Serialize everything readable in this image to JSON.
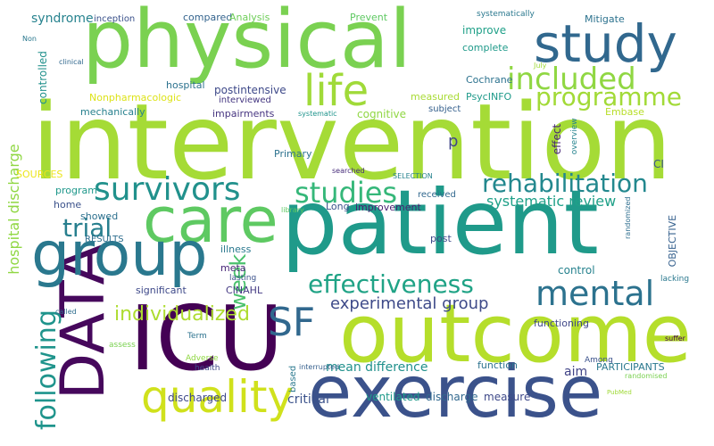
{
  "words": [
    {
      "text": "intervention",
      "color": "#a5db36"
    },
    {
      "text": "patient",
      "color": "#1f9a8a"
    },
    {
      "text": "physical",
      "color": "#7ad151"
    },
    {
      "text": "outcome",
      "color": "#b5de2b"
    },
    {
      "text": "exercise",
      "color": "#3b528b"
    },
    {
      "text": "ICU",
      "color": "#440154"
    },
    {
      "text": "DATA",
      "color": "#46085c"
    },
    {
      "text": "care",
      "color": "#5ec962"
    },
    {
      "text": "group",
      "color": "#2a788e"
    },
    {
      "text": "study",
      "color": "#31688e"
    },
    {
      "text": "life",
      "color": "#a0da39"
    },
    {
      "text": "quality",
      "color": "#d0e11c"
    },
    {
      "text": "SF",
      "color": "#31688e"
    },
    {
      "text": "survivors",
      "color": "#21918c"
    },
    {
      "text": "studies",
      "color": "#35b779"
    },
    {
      "text": "rehabilitation",
      "color": "#23888e"
    },
    {
      "text": "effectiveness",
      "color": "#20a386"
    },
    {
      "text": "mental",
      "color": "#2c728e"
    },
    {
      "text": "included",
      "color": "#90d743"
    },
    {
      "text": "programme",
      "color": "#a2da37"
    },
    {
      "text": "following",
      "color": "#1f948c"
    },
    {
      "text": "trial",
      "color": "#277f8e"
    },
    {
      "text": "week",
      "color": "#4ac16d"
    },
    {
      "text": "individualized",
      "color": "#addc30"
    },
    {
      "text": "experimental group",
      "color": "#3e4a89"
    },
    {
      "text": "systematic review",
      "color": "#1fa088"
    },
    {
      "text": "hospital discharge",
      "color": "#90d743"
    },
    {
      "text": "mean difference",
      "color": "#21918c"
    },
    {
      "text": "syndrome",
      "color": "#26828e"
    },
    {
      "text": "inception",
      "color": "#3b528b"
    },
    {
      "text": "compared",
      "color": "#33638d"
    },
    {
      "text": "Analysis",
      "color": "#6ece58"
    },
    {
      "text": "Prevent",
      "color": "#5ec962"
    },
    {
      "text": "systematically",
      "color": "#2a788e"
    },
    {
      "text": "Mitigate",
      "color": "#2c728e"
    },
    {
      "text": "improve",
      "color": "#1fa088"
    },
    {
      "text": "complete",
      "color": "#1f9a8a"
    },
    {
      "text": "Cochrane",
      "color": "#2c728e"
    },
    {
      "text": "measured",
      "color": "#a8db34"
    },
    {
      "text": "PsycINFO",
      "color": "#1f9a8a"
    },
    {
      "text": "subject",
      "color": "#35608d"
    },
    {
      "text": "Embase",
      "color": "#b8de29"
    },
    {
      "text": "effect",
      "color": "#482677"
    },
    {
      "text": "overview",
      "color": "#25838e"
    },
    {
      "text": "postintensive",
      "color": "#3e4989"
    },
    {
      "text": "interviewed",
      "color": "#453781"
    },
    {
      "text": "impairments",
      "color": "#463480"
    },
    {
      "text": "systematic",
      "color": "#1f948c"
    },
    {
      "text": "cognitive",
      "color": "#90d743"
    },
    {
      "text": "hospital",
      "color": "#2c728e"
    },
    {
      "text": "mechanically",
      "color": "#27808e"
    },
    {
      "text": "Nonpharmacologic",
      "color": "#dde318"
    },
    {
      "text": "controlled",
      "color": "#21918c"
    },
    {
      "text": "Non",
      "color": "#2a788e"
    },
    {
      "text": "clinical",
      "color": "#31688e"
    },
    {
      "text": "July",
      "color": "#a0da39"
    },
    {
      "text": "p",
      "color": "#404688"
    },
    {
      "text": "CI",
      "color": "#3b528b"
    },
    {
      "text": "Primary",
      "color": "#2c728e"
    },
    {
      "text": "searched",
      "color": "#472c7a"
    },
    {
      "text": "SELECTION",
      "color": "#26828e"
    },
    {
      "text": "received",
      "color": "#31688e"
    },
    {
      "text": "SOURCES",
      "color": "#ece51b"
    },
    {
      "text": "program",
      "color": "#1f988b"
    },
    {
      "text": "home",
      "color": "#3b528b"
    },
    {
      "text": "showed",
      "color": "#2d708e"
    },
    {
      "text": "RESULTS",
      "color": "#2e6e8e"
    },
    {
      "text": "library",
      "color": "#5ec962"
    },
    {
      "text": "Long",
      "color": "#3b528b"
    },
    {
      "text": "improvement",
      "color": "#482071"
    },
    {
      "text": "illness",
      "color": "#2a788e"
    },
    {
      "text": "post",
      "color": "#3e4989"
    },
    {
      "text": "meta",
      "color": "#482878"
    },
    {
      "text": "lasting",
      "color": "#3b528b"
    },
    {
      "text": "significant",
      "color": "#3e4989"
    },
    {
      "text": "CINAHL",
      "color": "#443983"
    },
    {
      "text": "OBJECTIVE",
      "color": "#35608d"
    },
    {
      "text": "randomized",
      "color": "#2e6e8e"
    },
    {
      "text": "control",
      "color": "#26828e"
    },
    {
      "text": "functioning",
      "color": "#3f4788"
    },
    {
      "text": "lacking",
      "color": "#2a788e"
    },
    {
      "text": "called",
      "color": "#2e6e8e"
    },
    {
      "text": "assess",
      "color": "#7ad151"
    },
    {
      "text": "Term",
      "color": "#2c728e"
    },
    {
      "text": "Adverse",
      "color": "#90d743"
    },
    {
      "text": "health",
      "color": "#3e4989"
    },
    {
      "text": "interrupted",
      "color": "#355f8d"
    },
    {
      "text": "based",
      "color": "#2a788e"
    },
    {
      "text": "function",
      "color": "#2c728e"
    },
    {
      "text": "aim",
      "color": "#414487"
    },
    {
      "text": "Among",
      "color": "#3b528b"
    },
    {
      "text": "PARTICIPANTS",
      "color": "#2a788e"
    },
    {
      "text": "suffer",
      "color": "#440154"
    },
    {
      "text": "randomised",
      "color": "#7ad151"
    },
    {
      "text": "PubMed",
      "color": "#a0da39"
    },
    {
      "text": "critical",
      "color": "#3b528b"
    },
    {
      "text": "ventilated",
      "color": "#1f9a8a"
    },
    {
      "text": "discharge",
      "color": "#31688e"
    },
    {
      "text": "measure",
      "color": "#3e4989"
    },
    {
      "text": "discharged",
      "color": "#3e4989"
    }
  ]
}
